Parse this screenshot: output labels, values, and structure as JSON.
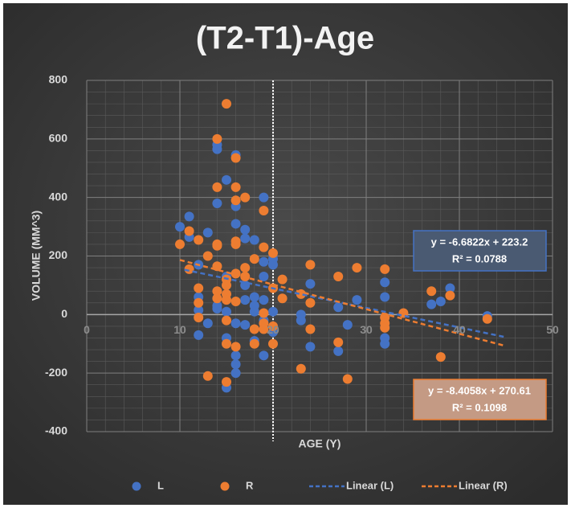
{
  "chart_data": {
    "type": "scatter",
    "title": "(T2-T1)-Age",
    "x_label": "AGE (Y)",
    "y_label": "VOLUME (MM^3)",
    "xlim": [
      0,
      50
    ],
    "ylim": [
      -400,
      800
    ],
    "xticks": [
      0,
      10,
      20,
      30,
      40,
      50
    ],
    "yticks": [
      -400,
      -200,
      0,
      200,
      400,
      600,
      800
    ],
    "grid": true,
    "legend": "bottom",
    "vline": 20,
    "series": [
      {
        "name": "L",
        "color": "#4472c4",
        "x": [
          10,
          11,
          11,
          12,
          12,
          12,
          12,
          13,
          13,
          14,
          14,
          14,
          14,
          14,
          15,
          15,
          15,
          15,
          15,
          16,
          16,
          16,
          16,
          16,
          16,
          16,
          17,
          17,
          17,
          17,
          17,
          18,
          18,
          18,
          18,
          18,
          19,
          19,
          19,
          19,
          19,
          19,
          20,
          20,
          20,
          20,
          23,
          23,
          24,
          24,
          27,
          27,
          28,
          29,
          32,
          32,
          32,
          32,
          37,
          38,
          39,
          43
        ],
        "values": [
          300,
          335,
          265,
          60,
          15,
          -70,
          170,
          280,
          -30,
          565,
          580,
          380,
          30,
          20,
          460,
          -250,
          -80,
          10,
          130,
          545,
          370,
          310,
          -30,
          -140,
          -170,
          -200,
          290,
          260,
          100,
          50,
          -35,
          255,
          60,
          30,
          10,
          -90,
          400,
          180,
          130,
          50,
          -20,
          -140,
          190,
          170,
          10,
          -60,
          0,
          -20,
          105,
          -110,
          25,
          -125,
          -35,
          50,
          110,
          60,
          -80,
          -100,
          35,
          45,
          90,
          -5
        ]
      },
      {
        "name": "R",
        "color": "#ed7d31",
        "x": [
          10,
          11,
          11,
          12,
          12,
          12,
          12,
          13,
          13,
          14,
          14,
          14,
          14,
          14,
          14,
          14,
          15,
          15,
          15,
          15,
          15,
          15,
          15,
          15,
          16,
          16,
          16,
          16,
          16,
          16,
          16,
          16,
          17,
          17,
          17,
          18,
          18,
          18,
          19,
          19,
          19,
          19,
          19,
          20,
          20,
          20,
          20,
          21,
          21,
          23,
          23,
          24,
          24,
          24,
          27,
          27,
          28,
          29,
          32,
          32,
          32,
          32,
          34,
          37,
          38,
          39,
          43
        ],
        "values": [
          240,
          285,
          155,
          255,
          90,
          40,
          -10,
          200,
          -210,
          600,
          435,
          240,
          235,
          165,
          80,
          55,
          720,
          120,
          100,
          70,
          50,
          -20,
          -100,
          -230,
          535,
          435,
          390,
          250,
          240,
          140,
          45,
          -110,
          400,
          160,
          130,
          190,
          -50,
          -100,
          355,
          230,
          5,
          -30,
          -50,
          210,
          90,
          -40,
          -100,
          120,
          55,
          -185,
          70,
          170,
          40,
          -50,
          130,
          -95,
          -220,
          160,
          155,
          -10,
          -30,
          -45,
          5,
          80,
          -145,
          65,
          -15
        ]
      }
    ],
    "trendlines": [
      {
        "name": "Linear (L)",
        "color": "#4472c4",
        "slope": -6.6822,
        "intercept": 223.2,
        "x_range": [
          10.5,
          45
        ],
        "label": "y = -6.6822x + 223.2",
        "r2_label": "R² = 0.0788"
      },
      {
        "name": "Linear (R)",
        "color": "#ed7d31",
        "slope": -8.4058,
        "intercept": 270.61,
        "x_range": [
          10,
          45
        ],
        "label": "y = -8.4058x + 270.61",
        "r2_label": "R² = 0.1098"
      }
    ]
  }
}
